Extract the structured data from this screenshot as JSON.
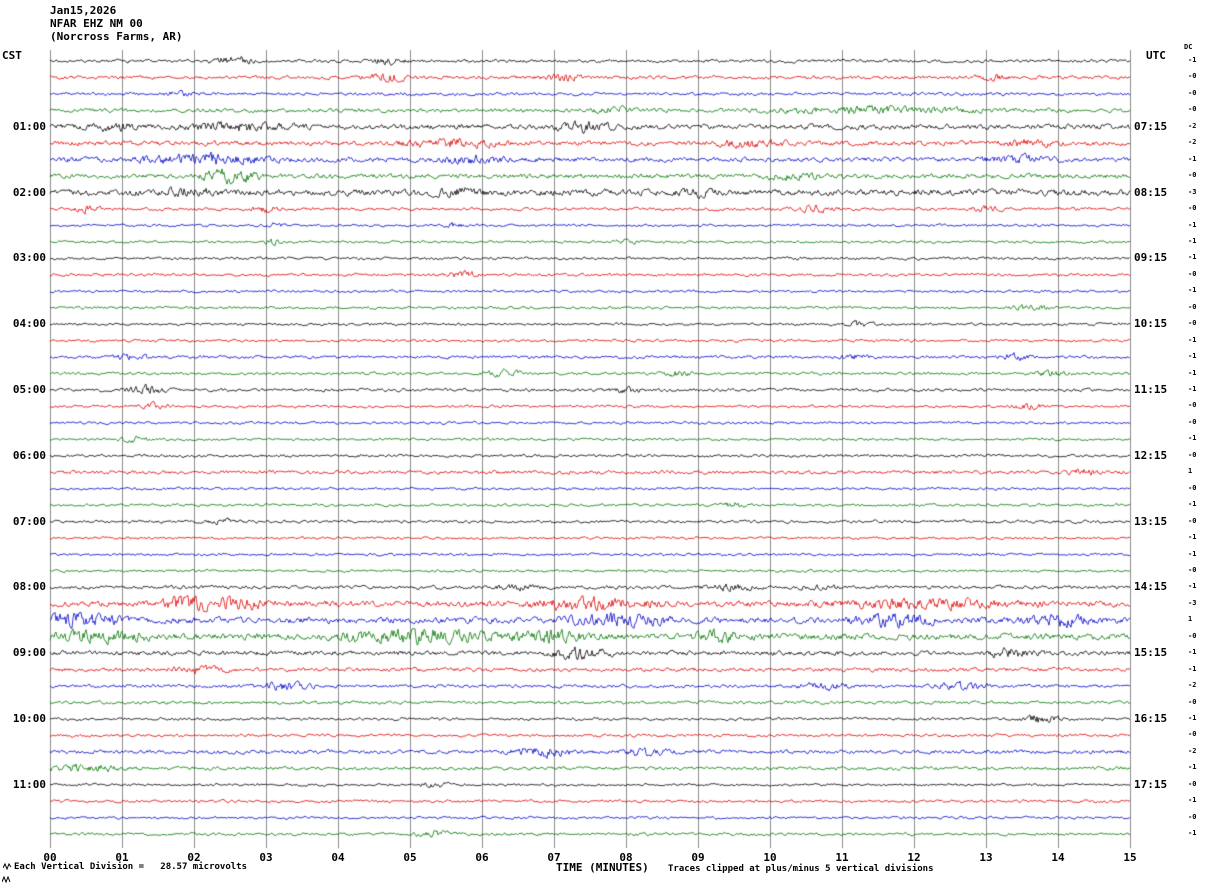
{
  "header": {
    "date": "Jan15,2026",
    "station": "NFAR EHZ NM 00",
    "location": "(Norcross Farms, AR)",
    "left_tz": "CST",
    "right_tz": "UTC",
    "dc_label": "DC"
  },
  "footer": {
    "scale_note": "Each Vertical Division =   28.57 microvolts",
    "xlabel": "TIME (MINUTES)",
    "clip_note": "Traces clipped at plus/minus 5 vertical divisions"
  },
  "chart_data": {
    "type": "line",
    "kind": "helicorder-seismogram",
    "title": "NFAR EHZ NM 00 (Norcross Farms, AR) Jan15,2026",
    "xlabel": "TIME (MINUTES)",
    "x_range_minutes": [
      0,
      15
    ],
    "x_ticks": [
      "00",
      "01",
      "02",
      "03",
      "04",
      "05",
      "06",
      "07",
      "08",
      "09",
      "10",
      "11",
      "12",
      "13",
      "14",
      "15"
    ],
    "grid": "vertical-minute-lines",
    "minutes_per_row": 15,
    "rows_per_hour": 4,
    "left_hour_labels": [
      "01:00",
      "02:00",
      "03:00",
      "04:00",
      "05:00",
      "06:00",
      "07:00",
      "08:00",
      "09:00",
      "10:00",
      "11:00"
    ],
    "right_hour_labels": [
      "07:15",
      "08:15",
      "09:15",
      "10:15",
      "11:15",
      "12:15",
      "13:15",
      "14:15",
      "15:15",
      "16:15",
      "17:15"
    ],
    "trace_colors": {
      "black": "#000000",
      "red": "#dd0000",
      "blue": "#0000cc",
      "green": "#007700"
    },
    "grid_color": "#8c8c8c",
    "clip_divisions": 5,
    "microvolts_per_division": 28.57,
    "rows": [
      {
        "color": "black",
        "dc": "-1",
        "amp": 1.2,
        "bursts": [
          [
            2.5,
            0.4,
            4
          ],
          [
            4.7,
            0.3,
            3
          ]
        ]
      },
      {
        "color": "red",
        "dc": "-0",
        "amp": 1.3,
        "bursts": [
          [
            4.7,
            0.5,
            3
          ],
          [
            7.1,
            0.4,
            2.5
          ],
          [
            13.1,
            0.4,
            2
          ]
        ]
      },
      {
        "color": "blue",
        "dc": "-0",
        "amp": 1.2,
        "bursts": [
          [
            1.8,
            0.3,
            2
          ]
        ]
      },
      {
        "color": "green",
        "dc": "-0",
        "amp": 1.5,
        "bursts": [
          [
            11.5,
            2.0,
            2.2
          ],
          [
            7.8,
            0.4,
            2
          ]
        ]
      },
      {
        "color": "black",
        "dc": "-2",
        "amp": 2.0,
        "bursts": [
          [
            2.6,
            1.0,
            3
          ],
          [
            7.4,
            0.6,
            3
          ],
          [
            0.9,
            0.4,
            2.5
          ]
        ]
      },
      {
        "color": "red",
        "dc": "-2",
        "amp": 1.8,
        "bursts": [
          [
            5.6,
            0.9,
            3
          ],
          [
            9.7,
            0.7,
            2.5
          ],
          [
            13.6,
            0.5,
            2.5
          ]
        ]
      },
      {
        "color": "blue",
        "dc": "-1",
        "amp": 1.8,
        "bursts": [
          [
            2.2,
            1.2,
            4
          ],
          [
            5.9,
            0.6,
            2.5
          ],
          [
            13.5,
            0.7,
            2.5
          ]
        ]
      },
      {
        "color": "green",
        "dc": "-0",
        "amp": 1.8,
        "bursts": [
          [
            2.5,
            0.5,
            6
          ],
          [
            10.3,
            0.6,
            2.5
          ]
        ]
      },
      {
        "color": "black",
        "dc": "-3",
        "amp": 2.4,
        "bursts": [
          [
            1.9,
            0.5,
            3
          ],
          [
            5.7,
            0.5,
            2.5
          ],
          [
            9.0,
            0.4,
            2
          ]
        ]
      },
      {
        "color": "red",
        "dc": "-0",
        "amp": 1.2,
        "bursts": [
          [
            0.5,
            0.3,
            2.5
          ],
          [
            3.0,
            0.3,
            2.5
          ],
          [
            10.6,
            0.4,
            2.5
          ],
          [
            13.0,
            0.3,
            2
          ]
        ]
      },
      {
        "color": "blue",
        "dc": "-1",
        "amp": 1.0,
        "bursts": [
          [
            3.1,
            0.2,
            2
          ],
          [
            5.6,
            0.2,
            2
          ]
        ]
      },
      {
        "color": "green",
        "dc": "-1",
        "amp": 1.0,
        "bursts": [
          [
            3.1,
            0.2,
            2
          ],
          [
            8.0,
            0.2,
            2
          ]
        ]
      },
      {
        "color": "black",
        "dc": "-1",
        "amp": 1.1,
        "bursts": []
      },
      {
        "color": "red",
        "dc": "-0",
        "amp": 1.1,
        "bursts": [
          [
            5.75,
            0.3,
            3
          ]
        ]
      },
      {
        "color": "blue",
        "dc": "-1",
        "amp": 1.0,
        "bursts": []
      },
      {
        "color": "green",
        "dc": "-0",
        "amp": 1.0,
        "bursts": [
          [
            13.6,
            0.4,
            2
          ]
        ]
      },
      {
        "color": "black",
        "dc": "-0",
        "amp": 1.0,
        "bursts": [
          [
            11.2,
            0.3,
            2
          ]
        ]
      },
      {
        "color": "red",
        "dc": "-1",
        "amp": 1.0,
        "bursts": []
      },
      {
        "color": "blue",
        "dc": "-1",
        "amp": 1.2,
        "bursts": [
          [
            1.15,
            0.3,
            2.5
          ],
          [
            11.2,
            0.3,
            2
          ],
          [
            13.4,
            0.3,
            2.5
          ]
        ]
      },
      {
        "color": "green",
        "dc": "-1",
        "amp": 1.1,
        "bursts": [
          [
            6.3,
            0.4,
            2
          ],
          [
            8.7,
            0.3,
            2
          ],
          [
            13.9,
            0.3,
            2.5
          ]
        ]
      },
      {
        "color": "black",
        "dc": "-1",
        "amp": 1.2,
        "bursts": [
          [
            1.35,
            0.4,
            3
          ],
          [
            8.0,
            0.3,
            2
          ]
        ]
      },
      {
        "color": "red",
        "dc": "-0",
        "amp": 1.0,
        "bursts": [
          [
            1.45,
            0.3,
            2.5
          ],
          [
            13.6,
            0.3,
            2
          ]
        ]
      },
      {
        "color": "blue",
        "dc": "-0",
        "amp": 1.0,
        "bursts": []
      },
      {
        "color": "green",
        "dc": "-1",
        "amp": 1.0,
        "bursts": [
          [
            1.2,
            0.3,
            2
          ]
        ]
      },
      {
        "color": "black",
        "dc": "-0",
        "amp": 1.1,
        "bursts": []
      },
      {
        "color": "red",
        "dc": "1",
        "amp": 1.4,
        "bursts": [
          [
            14.35,
            0.3,
            2.5
          ]
        ]
      },
      {
        "color": "blue",
        "dc": "-0",
        "amp": 1.0,
        "bursts": []
      },
      {
        "color": "green",
        "dc": "-1",
        "amp": 1.0,
        "bursts": [
          [
            9.5,
            0.3,
            2
          ]
        ]
      },
      {
        "color": "black",
        "dc": "-0",
        "amp": 1.1,
        "bursts": [
          [
            2.35,
            0.4,
            2
          ]
        ]
      },
      {
        "color": "red",
        "dc": "-1",
        "amp": 1.0,
        "bursts": []
      },
      {
        "color": "blue",
        "dc": "-1",
        "amp": 1.0,
        "bursts": []
      },
      {
        "color": "green",
        "dc": "-0",
        "amp": 1.0,
        "bursts": []
      },
      {
        "color": "black",
        "dc": "-1",
        "amp": 1.3,
        "bursts": [
          [
            9.45,
            0.5,
            2.5
          ],
          [
            10.65,
            0.4,
            2
          ],
          [
            6.5,
            0.4,
            2
          ]
        ]
      },
      {
        "color": "red",
        "dc": "-3",
        "amp": 2.2,
        "bursts": [
          [
            1.85,
            0.4,
            5
          ],
          [
            2.5,
            0.8,
            4
          ],
          [
            7.5,
            1.2,
            4
          ],
          [
            12.2,
            1.8,
            3
          ]
        ]
      },
      {
        "color": "blue",
        "dc": "1",
        "amp": 2.4,
        "bursts": [
          [
            0.35,
            0.8,
            5
          ],
          [
            7.9,
            1.0,
            4
          ],
          [
            11.7,
            0.8,
            4
          ],
          [
            13.95,
            0.6,
            4
          ]
        ]
      },
      {
        "color": "green",
        "dc": "-0",
        "amp": 2.4,
        "bursts": [
          [
            0.6,
            1.0,
            4
          ],
          [
            5.1,
            1.4,
            5
          ],
          [
            7.0,
            0.8,
            4
          ],
          [
            9.3,
            0.5,
            4
          ]
        ]
      },
      {
        "color": "black",
        "dc": "-1",
        "amp": 1.8,
        "bursts": [
          [
            7.35,
            0.6,
            4
          ],
          [
            13.35,
            0.5,
            3
          ]
        ]
      },
      {
        "color": "red",
        "dc": "-1",
        "amp": 1.5,
        "bursts": [
          [
            2.05,
            0.5,
            2.5
          ]
        ]
      },
      {
        "color": "blue",
        "dc": "-2",
        "amp": 1.3,
        "bursts": [
          [
            3.25,
            0.5,
            3
          ],
          [
            10.75,
            0.5,
            2.5
          ],
          [
            12.65,
            0.5,
            3
          ]
        ]
      },
      {
        "color": "green",
        "dc": "-0",
        "amp": 1.2,
        "bursts": []
      },
      {
        "color": "black",
        "dc": "-1",
        "amp": 1.1,
        "bursts": [
          [
            13.75,
            0.4,
            3.5
          ]
        ]
      },
      {
        "color": "red",
        "dc": "-0",
        "amp": 1.1,
        "bursts": []
      },
      {
        "color": "blue",
        "dc": "-2",
        "amp": 1.5,
        "bursts": [
          [
            6.85,
            0.6,
            3.5
          ],
          [
            8.25,
            0.5,
            2.5
          ]
        ]
      },
      {
        "color": "green",
        "dc": "-1",
        "amp": 1.3,
        "bursts": [
          [
            0.45,
            0.8,
            3
          ]
        ]
      },
      {
        "color": "black",
        "dc": "-0",
        "amp": 1.0,
        "bursts": [
          [
            5.35,
            0.3,
            2
          ]
        ]
      },
      {
        "color": "red",
        "dc": "-1",
        "amp": 1.1,
        "bursts": []
      },
      {
        "color": "blue",
        "dc": "-0",
        "amp": 1.0,
        "bursts": []
      },
      {
        "color": "green",
        "dc": "-1",
        "amp": 1.1,
        "bursts": [
          [
            5.35,
            0.4,
            2.5
          ]
        ]
      }
    ]
  }
}
